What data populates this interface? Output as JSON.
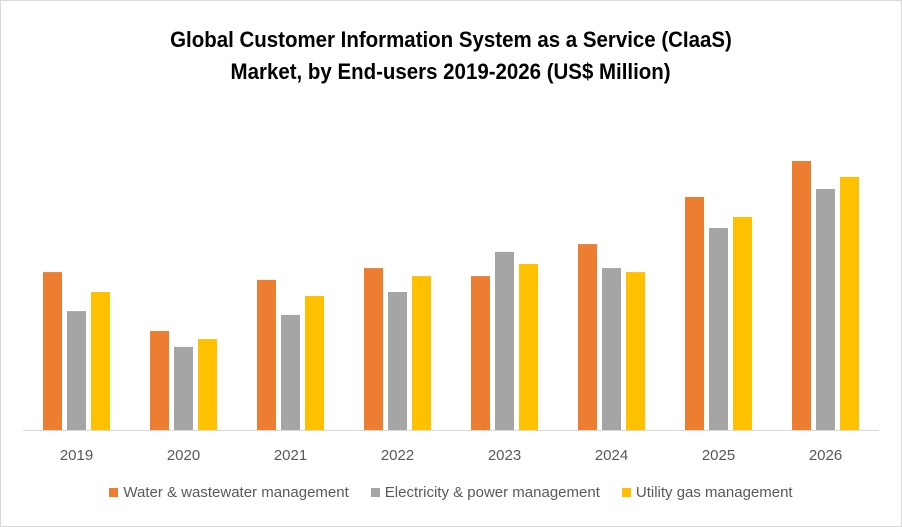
{
  "chart_data": {
    "type": "bar",
    "title": "Global Customer Information System as a Service (CIaaS) Market, by End-users 2019-2026 (US$ Million)",
    "title_lines": [
      "Global Customer Information System as a Service (CIaaS)",
      "Market, by End-users 2019-2026 (US$ Million)"
    ],
    "xlabel": "",
    "ylabel": "",
    "y_axis_visible": false,
    "grid": false,
    "value_note": "No y-axis shown; values are relative estimates (largest bar = 100)",
    "ylim": [
      0,
      100
    ],
    "categories": [
      "2019",
      "2020",
      "2021",
      "2022",
      "2023",
      "2024",
      "2025",
      "2026"
    ],
    "series": [
      {
        "name": "Water & wastewater management",
        "color": "#ED7D31",
        "values": [
          58.7,
          36.8,
          55.8,
          60.2,
          57.2,
          69.1,
          86.6,
          100
        ]
      },
      {
        "name": "Electricity & power management",
        "color": "#A5A5A5",
        "values": [
          44.2,
          30.9,
          42.8,
          51.3,
          66.2,
          60.2,
          75.1,
          89.6
        ]
      },
      {
        "name": "Utility gas management",
        "color": "#FFC000",
        "values": [
          51.3,
          33.8,
          49.8,
          57.2,
          61.7,
          58.7,
          79.2,
          94.1
        ]
      }
    ],
    "legend_position": "bottom"
  }
}
